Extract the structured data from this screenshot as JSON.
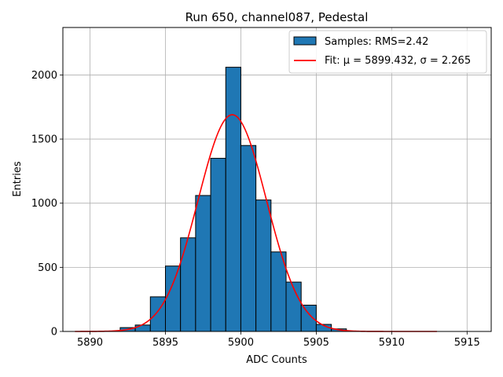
{
  "chart_data": {
    "type": "bar",
    "title": "Run 650, channel087, Pedestal",
    "xlabel": "ADC Counts",
    "ylabel": "Entries",
    "xlim": [
      5888.2,
      5916.6
    ],
    "ylim": [
      0,
      2370
    ],
    "xticks": [
      5890,
      5895,
      5900,
      5905,
      5910,
      5915
    ],
    "yticks": [
      0,
      500,
      1000,
      1500,
      2000
    ],
    "grid": true,
    "legend_position": "top-right",
    "bin_width": 1,
    "bins": [
      {
        "x0": 5892,
        "x1": 5893,
        "value": 30
      },
      {
        "x0": 5893,
        "x1": 5894,
        "value": 50
      },
      {
        "x0": 5894,
        "x1": 5895,
        "value": 270
      },
      {
        "x0": 5895,
        "x1": 5896,
        "value": 510
      },
      {
        "x0": 5896,
        "x1": 5897,
        "value": 730
      },
      {
        "x0": 5897,
        "x1": 5898,
        "value": 1060
      },
      {
        "x0": 5898,
        "x1": 5899,
        "value": 1350
      },
      {
        "x0": 5899,
        "x1": 5900,
        "value": 2060
      },
      {
        "x0": 5900,
        "x1": 5901,
        "value": 1450
      },
      {
        "x0": 5901,
        "x1": 5902,
        "value": 1025
      },
      {
        "x0": 5902,
        "x1": 5903,
        "value": 620
      },
      {
        "x0": 5903,
        "x1": 5904,
        "value": 385
      },
      {
        "x0": 5904,
        "x1": 5905,
        "value": 205
      },
      {
        "x0": 5905,
        "x1": 5906,
        "value": 55
      },
      {
        "x0": 5906,
        "x1": 5907,
        "value": 20
      }
    ],
    "series": [
      {
        "name": "Samples: RMS=2.42",
        "kind": "histogram",
        "color": "#1f77b4",
        "edge_color": "#000000"
      },
      {
        "name": "Fit: μ = 5899.432, σ = 2.265",
        "kind": "gaussian",
        "color": "#ff0000",
        "mu": 5899.432,
        "sigma": 2.265,
        "amplitude": 1690,
        "x_range": [
          5889,
          5913
        ]
      }
    ]
  }
}
